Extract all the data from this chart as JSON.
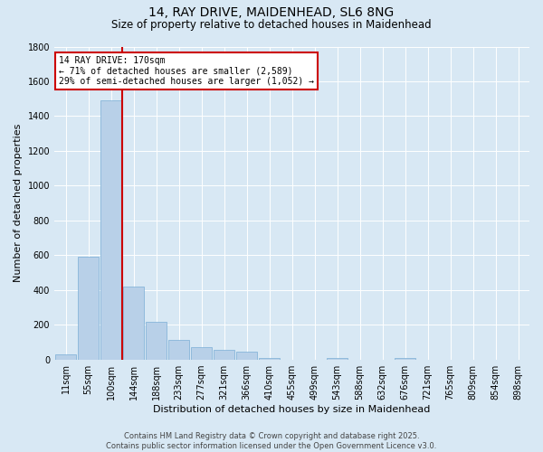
{
  "title_line1": "14, RAY DRIVE, MAIDENHEAD, SL6 8NG",
  "title_line2": "Size of property relative to detached houses in Maidenhead",
  "xlabel": "Distribution of detached houses by size in Maidenhead",
  "ylabel": "Number of detached properties",
  "footer_line1": "Contains HM Land Registry data © Crown copyright and database right 2025.",
  "footer_line2": "Contains public sector information licensed under the Open Government Licence v3.0.",
  "annotation_line1": "14 RAY DRIVE: 170sqm",
  "annotation_line2": "← 71% of detached houses are smaller (2,589)",
  "annotation_line3": "29% of semi-detached houses are larger (1,052) →",
  "property_size_bin": 3,
  "vline_color": "#cc0000",
  "bar_color": "#b8d0e8",
  "bar_edge_color": "#7aaed6",
  "background_color": "#d8e8f4",
  "plot_background": "#d8e8f4",
  "ylim": [
    0,
    1800
  ],
  "yticks": [
    0,
    200,
    400,
    600,
    800,
    1000,
    1200,
    1400,
    1600,
    1800
  ],
  "bin_labels": [
    "11sqm",
    "55sqm",
    "100sqm",
    "144sqm",
    "188sqm",
    "233sqm",
    "277sqm",
    "321sqm",
    "366sqm",
    "410sqm",
    "455sqm",
    "499sqm",
    "543sqm",
    "588sqm",
    "632sqm",
    "676sqm",
    "721sqm",
    "765sqm",
    "809sqm",
    "854sqm",
    "898sqm"
  ],
  "bin_centers": [
    0,
    1,
    2,
    3,
    4,
    5,
    6,
    7,
    8,
    9,
    10,
    11,
    12,
    13,
    14,
    15,
    16,
    17,
    18,
    19,
    20
  ],
  "bar_heights": [
    30,
    590,
    1490,
    420,
    215,
    110,
    70,
    55,
    45,
    10,
    0,
    0,
    10,
    0,
    0,
    10,
    0,
    0,
    0,
    0,
    0
  ],
  "title_fontsize": 10,
  "subtitle_fontsize": 8.5,
  "ylabel_fontsize": 8,
  "xlabel_fontsize": 8,
  "tick_fontsize": 7,
  "footer_fontsize": 6,
  "annotation_fontsize": 7
}
